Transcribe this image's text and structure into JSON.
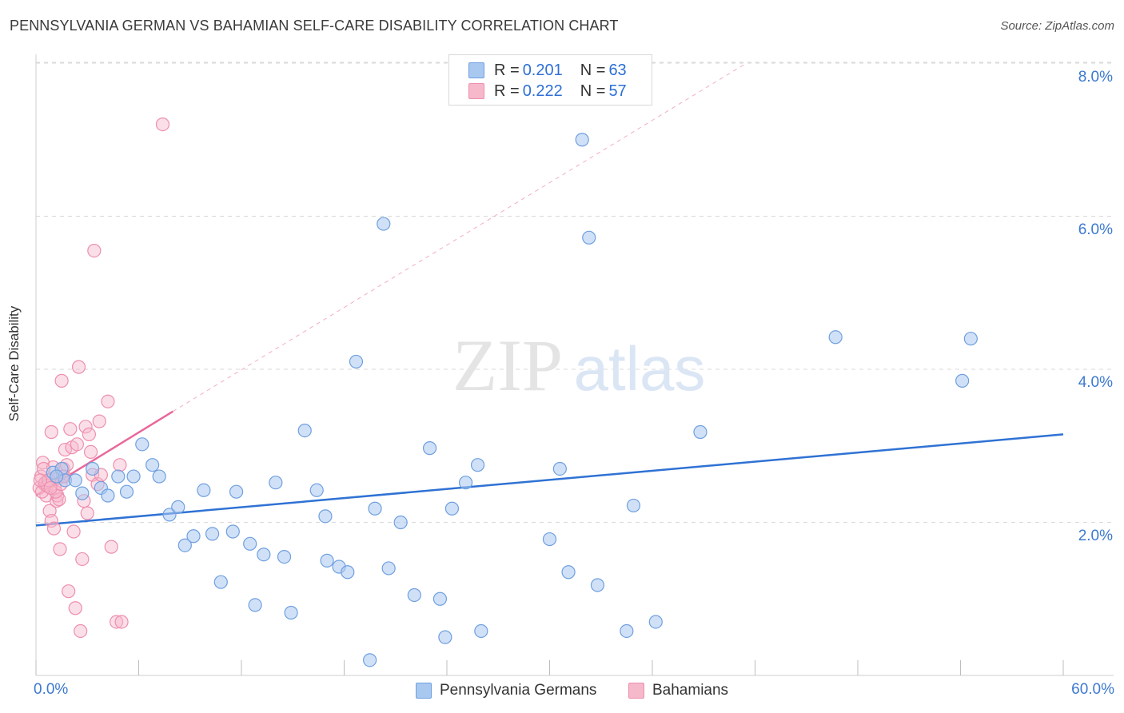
{
  "title": "PENNSYLVANIA GERMAN VS BAHAMIAN SELF-CARE DISABILITY CORRELATION CHART",
  "source": "Source: ZipAtlas.com",
  "watermark": {
    "zip": "ZIP",
    "atlas": "atlas"
  },
  "legend": {
    "series1": {
      "r_label": "R = ",
      "r_value": "0.201",
      "n_label": "N = ",
      "n_value": "63"
    },
    "series2": {
      "r_label": "R = ",
      "r_value": "0.222",
      "n_label": "N = ",
      "n_value": "57"
    }
  },
  "bottom_legend": {
    "series1": "Pennsylvania Germans",
    "series2": "Bahamians"
  },
  "x_tick_labels": {
    "left": "0.0%",
    "right": "60.0%"
  },
  "y_tick_labels": [
    "8.0%",
    "6.0%",
    "4.0%",
    "2.0%"
  ],
  "colors": {
    "blue_fill": "#a9c8f0",
    "blue_stroke": "#6f9fe0",
    "blue_line": "#2f72d4",
    "pink_fill": "#f6b8cb",
    "pink_stroke": "#ee8fad",
    "pink_line": "#e9679a",
    "tick_label": "#3d79d1",
    "grid": "#d9d9d9"
  },
  "chart_data": {
    "type": "scatter",
    "title": "PENNSYLVANIA GERMAN VS BAHAMIAN SELF-CARE DISABILITY CORRELATION CHART",
    "xlabel": "",
    "ylabel": "Self-Care Disability",
    "xlim": [
      0,
      60
    ],
    "ylim": [
      0,
      8.2
    ],
    "x_ticks": [
      0,
      6,
      12,
      18,
      24,
      30,
      36,
      42,
      48,
      54,
      60
    ],
    "y_ticks": [
      2,
      4,
      6,
      8
    ],
    "grid": "horizontal dashed",
    "legend_position": "top-center",
    "series": [
      {
        "name": "Pennsylvania Germans",
        "color": "#a9c8f0",
        "trend": {
          "x": [
            0,
            60
          ],
          "y": [
            1.96,
            3.15
          ],
          "style": "solid"
        },
        "points": [
          [
            1.0,
            2.65
          ],
          [
            1.5,
            2.7
          ],
          [
            1.7,
            2.55
          ],
          [
            2.3,
            2.55
          ],
          [
            2.7,
            2.38
          ],
          [
            3.3,
            2.7
          ],
          [
            3.8,
            2.45
          ],
          [
            4.2,
            2.35
          ],
          [
            4.8,
            2.6
          ],
          [
            5.3,
            2.4
          ],
          [
            5.7,
            2.6
          ],
          [
            6.2,
            3.02
          ],
          [
            6.8,
            2.75
          ],
          [
            7.2,
            2.6
          ],
          [
            7.8,
            2.1
          ],
          [
            8.3,
            2.2
          ],
          [
            8.7,
            1.7
          ],
          [
            9.2,
            1.82
          ],
          [
            9.8,
            2.42
          ],
          [
            10.3,
            1.85
          ],
          [
            10.8,
            1.22
          ],
          [
            11.5,
            1.88
          ],
          [
            11.7,
            2.4
          ],
          [
            12.5,
            1.72
          ],
          [
            12.8,
            0.92
          ],
          [
            13.3,
            1.58
          ],
          [
            14.0,
            2.52
          ],
          [
            14.5,
            1.55
          ],
          [
            14.9,
            0.82
          ],
          [
            15.7,
            3.2
          ],
          [
            16.4,
            2.42
          ],
          [
            16.9,
            2.08
          ],
          [
            17.0,
            1.5
          ],
          [
            17.7,
            1.42
          ],
          [
            18.2,
            1.35
          ],
          [
            18.7,
            4.1
          ],
          [
            19.5,
            0.2
          ],
          [
            19.8,
            2.18
          ],
          [
            20.3,
            5.9
          ],
          [
            20.6,
            1.4
          ],
          [
            21.3,
            2.0
          ],
          [
            22.1,
            1.05
          ],
          [
            23.0,
            2.97
          ],
          [
            23.6,
            1.0
          ],
          [
            23.9,
            0.5
          ],
          [
            24.3,
            2.18
          ],
          [
            25.1,
            2.52
          ],
          [
            25.8,
            2.75
          ],
          [
            26.0,
            0.58
          ],
          [
            30.0,
            1.78
          ],
          [
            30.6,
            2.7
          ],
          [
            31.1,
            1.35
          ],
          [
            31.9,
            7.0
          ],
          [
            32.3,
            5.72
          ],
          [
            32.8,
            1.18
          ],
          [
            34.5,
            0.58
          ],
          [
            34.9,
            2.22
          ],
          [
            36.2,
            0.7
          ],
          [
            38.8,
            3.18
          ],
          [
            46.7,
            4.42
          ],
          [
            54.1,
            3.85
          ],
          [
            54.6,
            4.4
          ],
          [
            1.2,
            2.6
          ]
        ]
      },
      {
        "name": "Bahamians",
        "color": "#f6b8cb",
        "trend": {
          "x": [
            0,
            8
          ],
          "y": [
            2.35,
            3.45
          ],
          "style": "solid",
          "extension": {
            "x": [
              8,
              41.5
            ],
            "y": [
              3.45,
              8.0
            ],
            "style": "dashed"
          }
        },
        "points": [
          [
            0.2,
            2.45
          ],
          [
            0.3,
            2.6
          ],
          [
            0.4,
            2.78
          ],
          [
            0.5,
            2.5
          ],
          [
            0.6,
            2.35
          ],
          [
            0.7,
            2.55
          ],
          [
            0.8,
            2.15
          ],
          [
            0.9,
            2.02
          ],
          [
            1.0,
            2.72
          ],
          [
            1.1,
            2.45
          ],
          [
            1.2,
            2.28
          ],
          [
            1.3,
            2.58
          ],
          [
            1.4,
            1.65
          ],
          [
            1.5,
            3.85
          ],
          [
            1.6,
            2.7
          ],
          [
            1.7,
            2.95
          ],
          [
            1.8,
            2.75
          ],
          [
            1.9,
            1.1
          ],
          [
            2.0,
            3.22
          ],
          [
            2.1,
            2.98
          ],
          [
            2.2,
            1.88
          ],
          [
            2.3,
            0.88
          ],
          [
            2.4,
            3.02
          ],
          [
            2.5,
            4.03
          ],
          [
            2.6,
            0.58
          ],
          [
            2.7,
            1.52
          ],
          [
            2.8,
            2.28
          ],
          [
            2.9,
            3.25
          ],
          [
            3.0,
            2.12
          ],
          [
            3.1,
            3.15
          ],
          [
            3.2,
            2.92
          ],
          [
            3.3,
            2.62
          ],
          [
            3.4,
            5.55
          ],
          [
            3.6,
            2.5
          ],
          [
            3.7,
            3.32
          ],
          [
            3.8,
            2.62
          ],
          [
            4.2,
            3.58
          ],
          [
            4.4,
            1.68
          ],
          [
            4.7,
            0.7
          ],
          [
            4.9,
            2.75
          ],
          [
            5.0,
            0.7
          ],
          [
            7.4,
            7.2
          ],
          [
            0.9,
            3.18
          ],
          [
            1.25,
            2.35
          ],
          [
            1.55,
            2.6
          ],
          [
            0.35,
            2.4
          ],
          [
            0.55,
            2.52
          ],
          [
            1.05,
            1.92
          ],
          [
            0.65,
            2.48
          ],
          [
            1.35,
            2.3
          ],
          [
            1.15,
            2.4
          ],
          [
            1.45,
            2.5
          ],
          [
            0.75,
            2.55
          ],
          [
            0.45,
            2.7
          ],
          [
            0.25,
            2.55
          ],
          [
            1.65,
            2.6
          ],
          [
            0.85,
            2.45
          ]
        ]
      }
    ]
  }
}
